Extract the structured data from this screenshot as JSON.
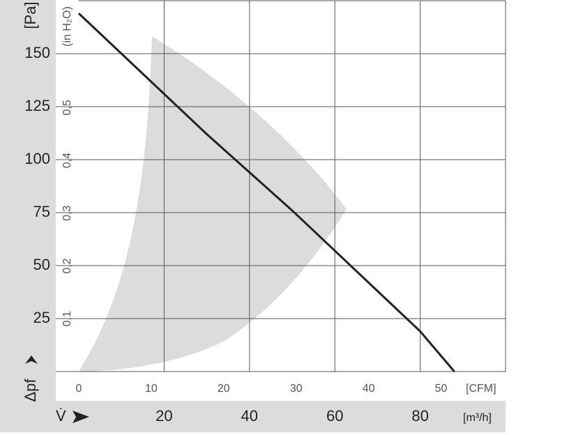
{
  "chart_data": {
    "type": "line",
    "y_unit_label": "[Pa]",
    "y2_unit_label": "(in H₂O)",
    "y_axis_label": "Δpf",
    "x_axis_label": "V̇",
    "x_unit_label": "[m³/h]",
    "x2_unit_label": "[CFM]",
    "x": [
      0,
      10,
      20,
      30,
      40,
      50,
      60,
      70,
      80,
      88
    ],
    "series": [
      {
        "name": "Δpf",
        "color": "#222222",
        "values": [
          169,
          150,
          131,
          112,
          94,
          76,
          57,
          38,
          19,
          0
        ]
      }
    ],
    "xlim": [
      0,
      100
    ],
    "xticks": [
      20,
      40,
      60,
      80
    ],
    "x2lim": [
      0,
      58.9
    ],
    "x2ticks": [
      0,
      10,
      20,
      30,
      40,
      50
    ],
    "ylim": [
      0,
      175
    ],
    "yticks": [
      25,
      50,
      75,
      100,
      125,
      150
    ],
    "y2lim": [
      0,
      0.7025
    ],
    "y2ticks": [
      {
        "value": 0.1,
        "label": "0,1"
      },
      {
        "value": 0.2,
        "label": "0,2"
      },
      {
        "value": 0.3,
        "label": "0,3"
      },
      {
        "value": 0.4,
        "label": "0,4"
      },
      {
        "value": 0.5,
        "label": "0,5"
      }
    ],
    "grid": true
  }
}
